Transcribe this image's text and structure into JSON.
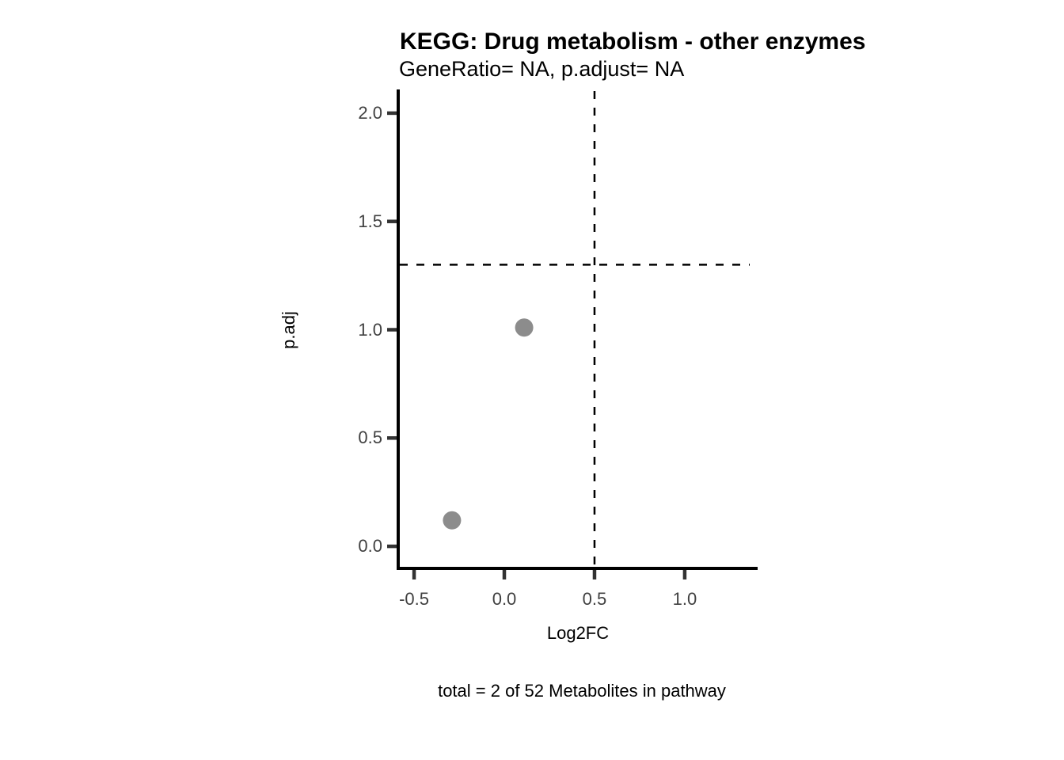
{
  "chart_data": {
    "type": "scatter",
    "title": "KEGG: Drug metabolism - other enzymes",
    "subtitle": "GeneRatio= NA, p.adjust= NA",
    "xlabel": "Log2FC",
    "ylabel": "p.adj",
    "caption": "total = 2 of 52 Metabolites in pathway",
    "points": [
      {
        "x": 0.11,
        "y": 1.01
      },
      {
        "x": -0.29,
        "y": 0.12
      }
    ],
    "x_tick_labels": [
      "-0.5",
      "0.0",
      "0.5",
      "1.0"
    ],
    "x_tick_values": [
      -0.5,
      0.0,
      0.5,
      1.0
    ],
    "y_tick_labels": [
      "0.0",
      "0.5",
      "1.0",
      "1.5",
      "2.0"
    ],
    "y_tick_values": [
      0.0,
      0.5,
      1.0,
      1.5,
      2.0
    ],
    "xlim": [
      -0.588,
      1.404
    ],
    "ylim": [
      -0.102,
      2.102
    ],
    "threshold_lines": {
      "vertical_x": 0.5,
      "horizontal_y": 1.3,
      "style": "dashed"
    },
    "grid": false,
    "legend": "none"
  },
  "colors": {
    "point": "#8c8c8c",
    "axis_line": "#000000",
    "tick_mark": "#333333",
    "axis_text": "#404040",
    "threshold_line": "#000000",
    "background": "#ffffff"
  }
}
